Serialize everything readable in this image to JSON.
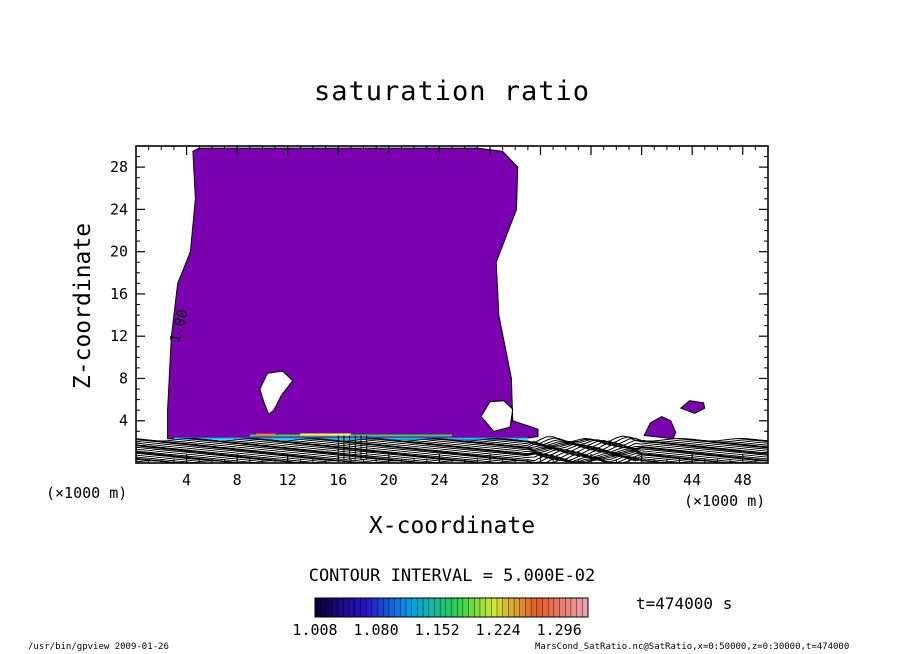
{
  "chart_data": {
    "type": "heatmap",
    "title": "saturation ratio",
    "xlabel": "X-coordinate",
    "ylabel": "Z-coordinate",
    "x_multiplier": "(×1000 m)",
    "y_multiplier": "(×1000 m)",
    "xlim": [
      0,
      50
    ],
    "ylim": [
      0,
      30
    ],
    "xticks": [
      "4",
      "8",
      "12",
      "16",
      "20",
      "24",
      "28",
      "32",
      "36",
      "40",
      "44",
      "48"
    ],
    "yticks": [
      "4",
      "8",
      "12",
      "16",
      "20",
      "24",
      "28"
    ],
    "contour_label": "1.00",
    "contour_interval_text": "CONTOUR INTERVAL = 5.000E-02",
    "colorbar_range": [
      1.008,
      1.33
    ],
    "colorbar_ticks": [
      "1.008",
      "1.080",
      "1.152",
      "1.224",
      "1.296"
    ],
    "time_label": "t=474000 s",
    "fill_color": "#7a00b0",
    "saturated_region": {
      "outline": [
        [
          2.5,
          2.3
        ],
        [
          2.5,
          5
        ],
        [
          2.8,
          12
        ],
        [
          3.3,
          17
        ],
        [
          4.3,
          20
        ],
        [
          4.7,
          25
        ],
        [
          4.5,
          29.5
        ],
        [
          5,
          29.8
        ],
        [
          27,
          29.8
        ],
        [
          29,
          29.5
        ],
        [
          30.2,
          28
        ],
        [
          30.1,
          24
        ],
        [
          28.5,
          19
        ],
        [
          28.7,
          14
        ],
        [
          29.7,
          8
        ],
        [
          29.8,
          4
        ],
        [
          31.8,
          3.2
        ],
        [
          31.8,
          2.5
        ],
        [
          30,
          2.2
        ],
        [
          2.5,
          2.3
        ]
      ],
      "holes": [
        [
          [
            9.8,
            7
          ],
          [
            10.4,
            8.5
          ],
          [
            11.6,
            8.7
          ],
          [
            12.4,
            7.8
          ],
          [
            11.5,
            6.4
          ],
          [
            10.9,
            5
          ],
          [
            10.5,
            4.6
          ],
          [
            10.1,
            5.8
          ],
          [
            9.8,
            7
          ]
        ],
        [
          [
            27.3,
            4.4
          ],
          [
            28,
            5.8
          ],
          [
            29.1,
            5.9
          ],
          [
            29.8,
            5.1
          ],
          [
            29.6,
            3.4
          ],
          [
            28.3,
            3
          ],
          [
            27.3,
            4.4
          ]
        ]
      ],
      "patches": [
        [
          [
            40.2,
            2.6
          ],
          [
            40.7,
            3.8
          ],
          [
            41.6,
            4.4
          ],
          [
            42.3,
            4.0
          ],
          [
            42.7,
            2.9
          ],
          [
            42.5,
            2.3
          ],
          [
            40.2,
            2.6
          ]
        ],
        [
          [
            43.1,
            5.2
          ],
          [
            43.8,
            5.9
          ],
          [
            44.9,
            5.7
          ],
          [
            45.0,
            5.2
          ],
          [
            44.2,
            4.7
          ],
          [
            43.1,
            5.2
          ]
        ]
      ]
    },
    "color_bands": [
      {
        "x": [
          3,
          31
        ],
        "y": 2.3,
        "color": "#00d0ff"
      },
      {
        "x": [
          9,
          25
        ],
        "y": 2.6,
        "color": "#30e040"
      },
      {
        "x": [
          13,
          17
        ],
        "y": 2.7,
        "color": "#ffff40"
      },
      {
        "x": [
          9.5,
          11
        ],
        "y": 2.7,
        "color": "#ff7040"
      }
    ],
    "grid": false
  },
  "footer": {
    "left": "/usr/bin/gpview   2009-01-26",
    "right": "MarsCond_SatRatio.nc@SatRatio,x=0:50000,z=0:30000,t=474000"
  }
}
